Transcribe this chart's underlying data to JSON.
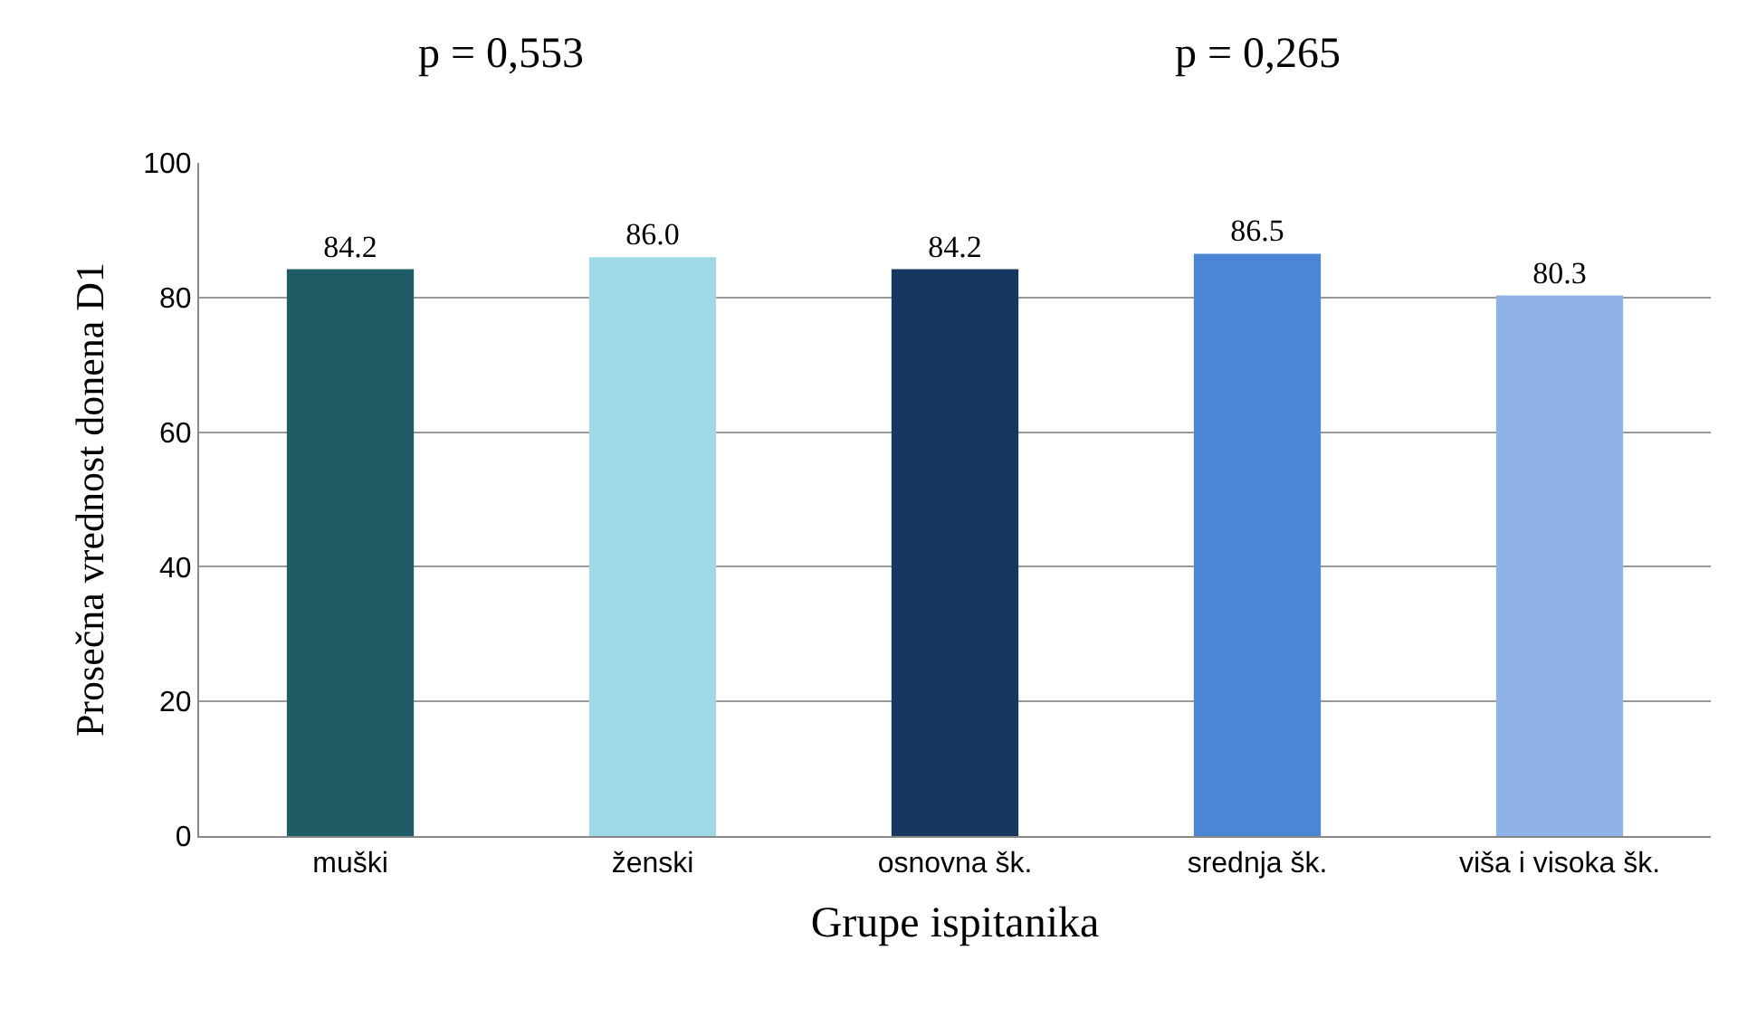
{
  "chart_data": {
    "type": "bar",
    "categories": [
      "muški",
      "ženski",
      "osnovna šk.",
      "srednja šk.",
      "viša i visoka šk."
    ],
    "values": [
      84.2,
      86.0,
      84.2,
      86.5,
      80.3
    ],
    "value_labels": [
      "84.2",
      "86.0",
      "84.2",
      "86.5",
      "80.3"
    ],
    "colors": [
      "#1f5c66",
      "#9fd8e6",
      "#17375e",
      "#4a86d4",
      "#8fb3e8"
    ],
    "xlabel": "Grupe ispitanika",
    "ylabel": "Prosečna vrednost donena D1",
    "ylim": [
      0,
      100
    ],
    "yticks": [
      0,
      20,
      40,
      60,
      80,
      100
    ],
    "grid": "y",
    "annotations": [
      "p = 0,553",
      "p = 0,265"
    ]
  }
}
